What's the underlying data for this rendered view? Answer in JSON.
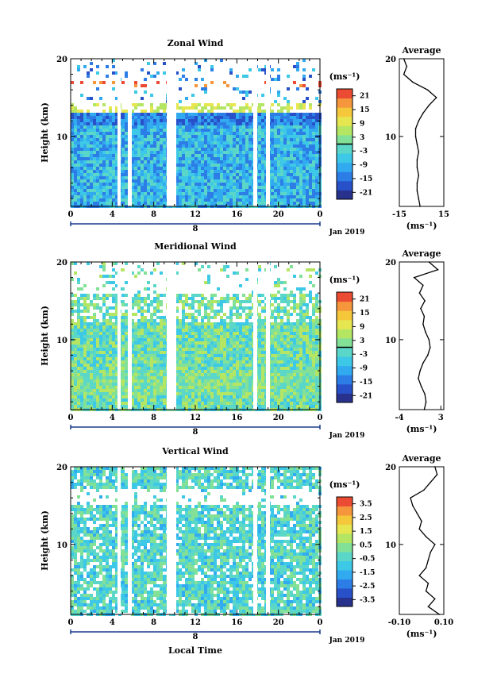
{
  "figure": {
    "date_label": "Jan 2019",
    "day_label": "8",
    "xlabel": "Local Time"
  },
  "chart_data": [
    {
      "type": "heatmap",
      "title": "Zonal Wind",
      "ylabel": "Height (km)",
      "x_ticks": [
        "0",
        "4",
        "8",
        "12",
        "16",
        "20",
        "0"
      ],
      "y_ticks": [
        "20",
        "10"
      ],
      "xlim": [
        0,
        24
      ],
      "ylim": [
        1,
        20
      ],
      "colorbar": {
        "unit": "(ms⁻¹)",
        "range": [
          -24,
          24
        ],
        "ticks": [
          "21",
          "15",
          "9",
          "3",
          "-3",
          "-9",
          "-15",
          "-21"
        ],
        "zero_line": true
      },
      "profile": {
        "title": "Average",
        "xlabel": "(ms⁻¹)",
        "x_ticks": [
          "-15",
          "15"
        ],
        "xlim": [
          -15,
          15
        ],
        "y_ticks": [
          "20",
          "10"
        ],
        "heights": [
          1,
          2,
          3,
          4,
          5,
          6,
          7,
          8,
          9,
          10,
          11,
          12,
          13,
          14,
          15,
          16,
          17,
          18,
          19,
          20
        ],
        "values": [
          -1,
          -2,
          -3,
          -3,
          -2,
          -3,
          -3,
          -2,
          -3,
          -4,
          -4,
          -2,
          1,
          5,
          10,
          4,
          -6,
          -12,
          -10,
          -12
        ]
      }
    },
    {
      "type": "heatmap",
      "title": "Meridional Wind",
      "ylabel": "Height (km)",
      "x_ticks": [
        "0",
        "4",
        "8",
        "12",
        "16",
        "20",
        "0"
      ],
      "y_ticks": [
        "20",
        "10"
      ],
      "xlim": [
        0,
        24
      ],
      "ylim": [
        1,
        20
      ],
      "colorbar": {
        "unit": "(ms⁻¹)",
        "range": [
          -24,
          24
        ],
        "ticks": [
          "21",
          "15",
          "9",
          "3",
          "-3",
          "-9",
          "-15",
          "-21"
        ],
        "zero_line": true
      },
      "profile": {
        "title": "Average",
        "xlabel": "(ms⁻¹)",
        "x_ticks": [
          "-4",
          "3"
        ],
        "xlim": [
          -4,
          3.5
        ],
        "y_ticks": [
          "20",
          "10"
        ],
        "heights": [
          1,
          2,
          3,
          4,
          5,
          6,
          7,
          8,
          9,
          10,
          11,
          12,
          13,
          14,
          15,
          16,
          17,
          18,
          19,
          20
        ],
        "values": [
          0.2,
          0.5,
          0.3,
          -0.3,
          -0.8,
          -0.5,
          0.0,
          0.8,
          1.2,
          1.0,
          0.4,
          0.0,
          0.2,
          -0.4,
          0.3,
          -0.6,
          0.0,
          -1.5,
          2.5,
          1.0
        ]
      }
    },
    {
      "type": "heatmap",
      "title": "Vertical Wind",
      "ylabel": "Height (km)",
      "x_ticks": [
        "0",
        "4",
        "8",
        "12",
        "16",
        "20",
        "0"
      ],
      "y_ticks": [
        "20",
        "10"
      ],
      "xlim": [
        0,
        24
      ],
      "ylim": [
        1,
        20
      ],
      "colorbar": {
        "unit": "(ms⁻¹)",
        "range": [
          -4,
          4
        ],
        "ticks": [
          "3.5",
          "2.5",
          "1.5",
          "0.5",
          "-0.5",
          "-1.5",
          "-2.5",
          "-3.5"
        ],
        "zero_line": false
      },
      "profile": {
        "title": "Average",
        "xlabel": "(ms⁻¹)",
        "x_ticks": [
          "-0.10",
          "0.10"
        ],
        "xlim": [
          -0.1,
          0.1
        ],
        "y_ticks": [
          "20",
          "10"
        ],
        "heights": [
          1,
          2,
          3,
          4,
          5,
          6,
          7,
          8,
          9,
          10,
          11,
          12,
          13,
          14,
          15,
          16,
          17,
          18,
          19,
          20
        ],
        "values": [
          0.08,
          0.03,
          0.06,
          0.02,
          0.03,
          -0.01,
          0.02,
          0.03,
          0.04,
          0.06,
          0.02,
          -0.01,
          0.0,
          -0.02,
          -0.04,
          -0.05,
          0.01,
          0.04,
          0.07,
          0.06
        ]
      }
    }
  ]
}
